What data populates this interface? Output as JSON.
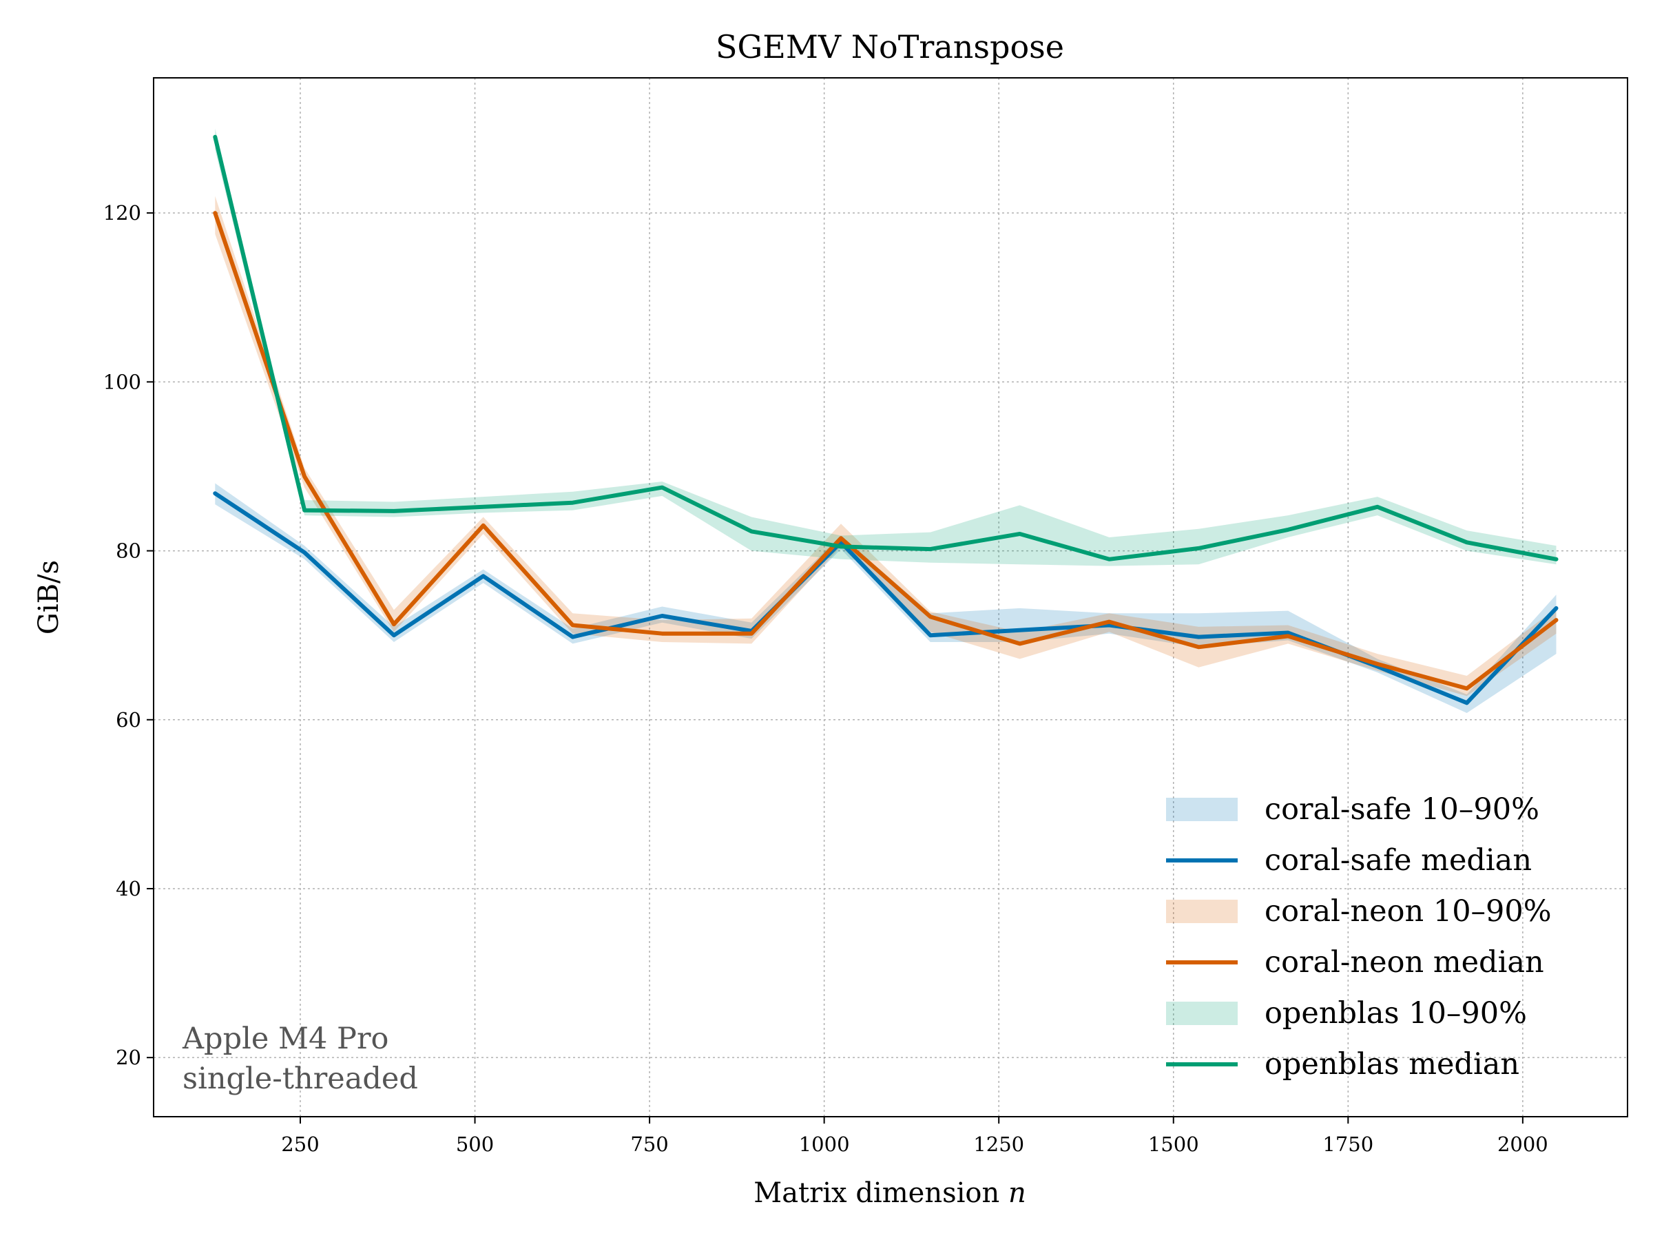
{
  "chart_data": {
    "type": "line",
    "title": "SGEMV NoTranspose",
    "xlabel": "Matrix dimension",
    "xlabel_var": "n",
    "ylabel": "GiB/s",
    "xlim": [
      40,
      2150
    ],
    "ylim": [
      13,
      136
    ],
    "grid": true,
    "legend_position": "lower-right",
    "annotation": [
      "Apple M4 Pro",
      "single-threaded"
    ],
    "x_ticks": [
      250,
      500,
      750,
      1000,
      1250,
      1500,
      1750,
      2000
    ],
    "y_ticks": [
      20,
      40,
      60,
      80,
      100,
      120
    ],
    "x": [
      128,
      256,
      384,
      512,
      640,
      768,
      896,
      1024,
      1152,
      1280,
      1408,
      1536,
      1664,
      1792,
      1920,
      2048
    ],
    "series": [
      {
        "name": "coral-safe",
        "color": "#0072b2",
        "band_label": "coral-safe 10–90%",
        "median_label": "coral-safe median",
        "median": [
          86.8,
          79.8,
          70.0,
          77.0,
          69.8,
          72.3,
          70.5,
          81.0,
          70.0,
          70.6,
          71.2,
          69.8,
          70.3,
          66.3,
          62.0,
          73.2
        ],
        "p10": [
          85.5,
          79.0,
          69.2,
          76.2,
          69.0,
          71.5,
          69.6,
          80.2,
          69.2,
          69.2,
          70.2,
          68.6,
          69.4,
          65.6,
          60.8,
          67.8
        ],
        "p90": [
          88.0,
          80.6,
          71.0,
          77.8,
          70.8,
          73.4,
          71.5,
          81.8,
          72.6,
          73.2,
          72.6,
          72.6,
          72.9,
          67.2,
          63.0,
          74.8
        ]
      },
      {
        "name": "coral-neon",
        "color": "#d55e00",
        "band_label": "coral-neon 10–90%",
        "median_label": "coral-neon median",
        "median": [
          120.0,
          88.8,
          71.3,
          83.0,
          71.2,
          70.2,
          70.2,
          81.5,
          72.2,
          69.0,
          71.6,
          68.6,
          69.9,
          66.6,
          63.7,
          71.8
        ],
        "p10": [
          117.5,
          87.5,
          70.4,
          82.0,
          70.2,
          69.2,
          69.0,
          80.5,
          70.4,
          67.2,
          70.4,
          66.2,
          69.0,
          65.8,
          62.8,
          70.2
        ],
        "p90": [
          122.0,
          89.8,
          73.0,
          84.0,
          72.6,
          71.8,
          72.0,
          83.2,
          72.8,
          70.4,
          72.6,
          71.0,
          71.2,
          67.8,
          65.2,
          73.2
        ]
      },
      {
        "name": "openblas",
        "color": "#009e73",
        "band_label": "openblas 10–90%",
        "median_label": "openblas median",
        "median": [
          129.0,
          84.8,
          84.7,
          85.2,
          85.7,
          87.5,
          82.3,
          80.5,
          80.2,
          82.0,
          79.0,
          80.3,
          82.5,
          85.2,
          81.0,
          79.0
        ],
        "p10": [
          127.5,
          84.2,
          84.0,
          84.5,
          84.8,
          86.5,
          80.0,
          79.0,
          78.6,
          78.4,
          78.2,
          78.4,
          81.6,
          84.2,
          80.0,
          78.4
        ],
        "p90": [
          130.0,
          86.0,
          85.8,
          86.4,
          87.0,
          88.2,
          84.0,
          81.8,
          82.2,
          85.4,
          81.6,
          82.6,
          84.2,
          86.4,
          82.4,
          80.6
        ]
      }
    ]
  }
}
